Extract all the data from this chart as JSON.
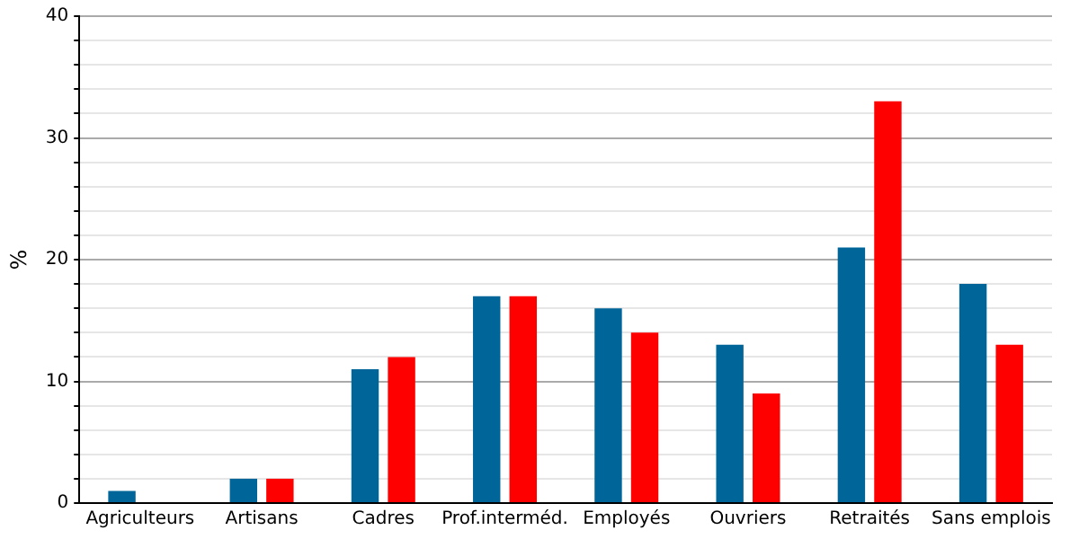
{
  "chart_data": {
    "type": "bar",
    "ylabel": "%",
    "categories": [
      "Agriculteurs",
      "Artisans",
      "Cadres",
      "Prof.interméd.",
      "Employés",
      "Ouvriers",
      "Retraités",
      "Sans emplois"
    ],
    "series": [
      {
        "color": "#006699",
        "values": [
          1,
          2,
          11,
          17,
          16,
          13,
          21,
          18
        ]
      },
      {
        "color": "#ff0000",
        "values": [
          0,
          2,
          12,
          17,
          14,
          9,
          33,
          13
        ]
      }
    ],
    "ylim": [
      0,
      40
    ],
    "yticks": [
      0,
      {
        "value": 2,
        "label": null
      },
      {
        "value": 4,
        "label": null
      },
      {
        "value": 6,
        "label": null
      },
      {
        "value": 8,
        "label": null
      },
      10,
      {
        "value": 12,
        "label": null
      },
      {
        "value": 14,
        "label": null
      },
      {
        "value": 16,
        "label": null
      },
      {
        "value": 18,
        "label": null
      },
      20,
      {
        "value": 22,
        "label": null
      },
      {
        "value": 24,
        "label": null
      },
      {
        "value": 26,
        "label": null
      },
      {
        "value": 28,
        "label": null
      },
      30,
      {
        "value": 32,
        "label": null
      },
      {
        "value": 34,
        "label": null
      },
      {
        "value": 36,
        "label": null
      },
      {
        "value": 38,
        "label": null
      },
      40
    ],
    "grid": "y",
    "legend": false
  }
}
